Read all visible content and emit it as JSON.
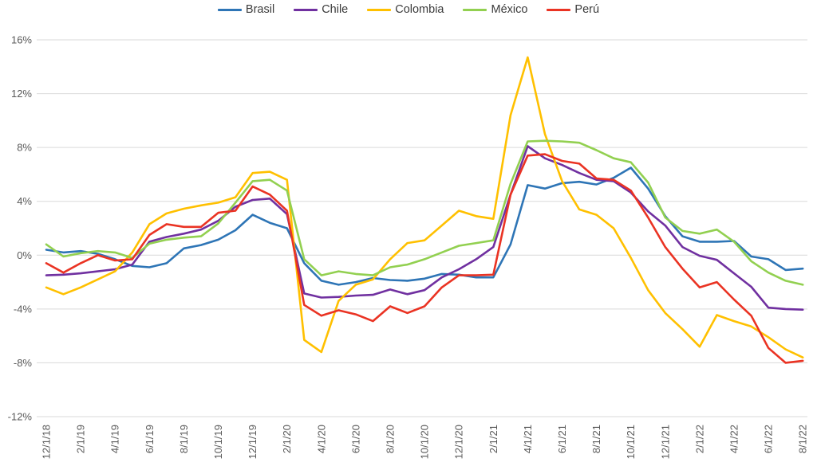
{
  "chart_data": {
    "type": "line",
    "title": "",
    "xlabel": "",
    "ylabel": "",
    "grid": "horizontal-only",
    "legend_position": "top-center",
    "background_color": "#FFFFFF",
    "gridline_color": "#D9D9D9",
    "axis_text_color": "#595959",
    "legend_text_color": "#3B3B3B",
    "ylim": [
      -12,
      16
    ],
    "yticks": [
      16,
      12,
      8,
      4,
      0,
      -4,
      -8,
      -12
    ],
    "ytick_labels": [
      "16%",
      "12%",
      "8%",
      "4%",
      "0%",
      "-4%",
      "-8%",
      "-12%"
    ],
    "x_tick_every": 2,
    "x_dates": [
      "12/1/18",
      "1/1/19",
      "2/1/19",
      "3/1/19",
      "4/1/19",
      "5/1/19",
      "6/1/19",
      "7/1/19",
      "8/1/19",
      "9/1/19",
      "10/1/19",
      "11/1/19",
      "12/1/19",
      "1/1/20",
      "2/1/20",
      "3/1/20",
      "4/1/20",
      "5/1/20",
      "6/1/20",
      "7/1/20",
      "8/1/20",
      "9/1/20",
      "10/1/20",
      "11/1/20",
      "12/1/20",
      "1/1/21",
      "2/1/21",
      "3/1/21",
      "4/1/21",
      "5/1/21",
      "6/1/21",
      "7/1/21",
      "8/1/21",
      "9/1/21",
      "10/1/21",
      "11/1/21",
      "12/1/21",
      "1/1/22",
      "2/1/22",
      "3/1/22",
      "4/1/22",
      "5/1/22",
      "6/1/22",
      "7/1/22",
      "8/1/22"
    ],
    "x_tick_labels_visible": [
      "12/1/18",
      "2/1/19",
      "4/1/19",
      "6/1/19",
      "8/1/19",
      "10/1/19",
      "12/1/19",
      "2/1/20",
      "4/1/20",
      "6/1/20",
      "8/1/20",
      "10/1/20",
      "12/1/20",
      "2/1/21",
      "4/1/21",
      "6/1/21",
      "8/1/21",
      "10/1/21",
      "12/1/21",
      "2/1/22",
      "4/1/22",
      "6/1/22",
      "8/1/22"
    ],
    "unit": "percent",
    "series": [
      {
        "name": "Brasil",
        "color": "#2E75B6",
        "values": [
          0.4,
          0.2,
          0.3,
          0.1,
          -0.3,
          -0.8,
          -0.9,
          -0.6,
          0.5,
          0.75,
          1.15,
          1.85,
          3.0,
          2.4,
          2.0,
          -0.6,
          -1.9,
          -2.2,
          -2.0,
          -1.7,
          -1.85,
          -1.9,
          -1.75,
          -1.4,
          -1.45,
          -1.65,
          -1.65,
          0.8,
          5.2,
          4.95,
          5.35,
          5.45,
          5.25,
          5.75,
          6.5,
          4.95,
          2.9,
          1.4,
          1.0,
          1.0,
          1.05,
          -0.1,
          -0.3,
          -1.1,
          -1.0
        ]
      },
      {
        "name": "Chile",
        "color": "#7030A0",
        "values": [
          -1.5,
          -1.45,
          -1.35,
          -1.2,
          -1.05,
          -0.7,
          1.0,
          1.35,
          1.6,
          1.9,
          2.55,
          3.6,
          4.1,
          4.2,
          3.05,
          -2.85,
          -3.15,
          -3.1,
          -3.0,
          -2.95,
          -2.55,
          -2.9,
          -2.6,
          -1.65,
          -1.05,
          -0.3,
          0.6,
          4.5,
          8.1,
          7.2,
          6.7,
          6.1,
          5.6,
          5.5,
          4.65,
          3.25,
          2.2,
          0.6,
          -0.05,
          -0.35,
          -1.35,
          -2.35,
          -3.9,
          -4.0,
          -4.05
        ]
      },
      {
        "name": "Colombia",
        "color": "#FFC000",
        "values": [
          -2.4,
          -2.9,
          -2.4,
          -1.8,
          -1.2,
          0.2,
          2.3,
          3.1,
          3.45,
          3.7,
          3.9,
          4.3,
          6.1,
          6.2,
          5.6,
          -6.3,
          -7.2,
          -3.4,
          -2.2,
          -1.8,
          -0.3,
          0.9,
          1.1,
          2.2,
          3.3,
          2.9,
          2.7,
          10.4,
          14.7,
          9.0,
          5.5,
          3.4,
          3.0,
          2.0,
          -0.2,
          -2.6,
          -4.3,
          -5.5,
          -6.8,
          -4.45,
          -4.9,
          -5.3,
          -6.1,
          -7.0,
          -7.6
        ]
      },
      {
        "name": "México",
        "color": "#92D050",
        "values": [
          0.8,
          -0.1,
          0.15,
          0.3,
          0.2,
          -0.2,
          0.85,
          1.15,
          1.3,
          1.4,
          2.35,
          3.9,
          5.5,
          5.6,
          4.8,
          -0.3,
          -1.5,
          -1.2,
          -1.4,
          -1.5,
          -0.9,
          -0.7,
          -0.3,
          0.2,
          0.7,
          0.9,
          1.1,
          5.3,
          8.45,
          8.5,
          8.45,
          8.35,
          7.8,
          7.2,
          6.9,
          5.4,
          2.8,
          1.8,
          1.6,
          1.9,
          1.0,
          -0.45,
          -1.3,
          -1.9,
          -2.2
        ]
      },
      {
        "name": "Perú",
        "color": "#EA3323",
        "values": [
          -0.6,
          -1.3,
          -0.6,
          0.0,
          -0.4,
          -0.3,
          1.5,
          2.3,
          2.1,
          2.1,
          3.15,
          3.3,
          5.1,
          4.5,
          3.3,
          -3.7,
          -4.5,
          -4.1,
          -4.4,
          -4.9,
          -3.8,
          -4.3,
          -3.8,
          -2.4,
          -1.5,
          -1.5,
          -1.45,
          4.5,
          7.4,
          7.5,
          7.0,
          6.8,
          5.7,
          5.6,
          4.8,
          2.8,
          0.6,
          -1.0,
          -2.4,
          -2.0,
          -3.3,
          -4.5,
          -6.9,
          -8.0,
          -7.85
        ]
      }
    ]
  }
}
